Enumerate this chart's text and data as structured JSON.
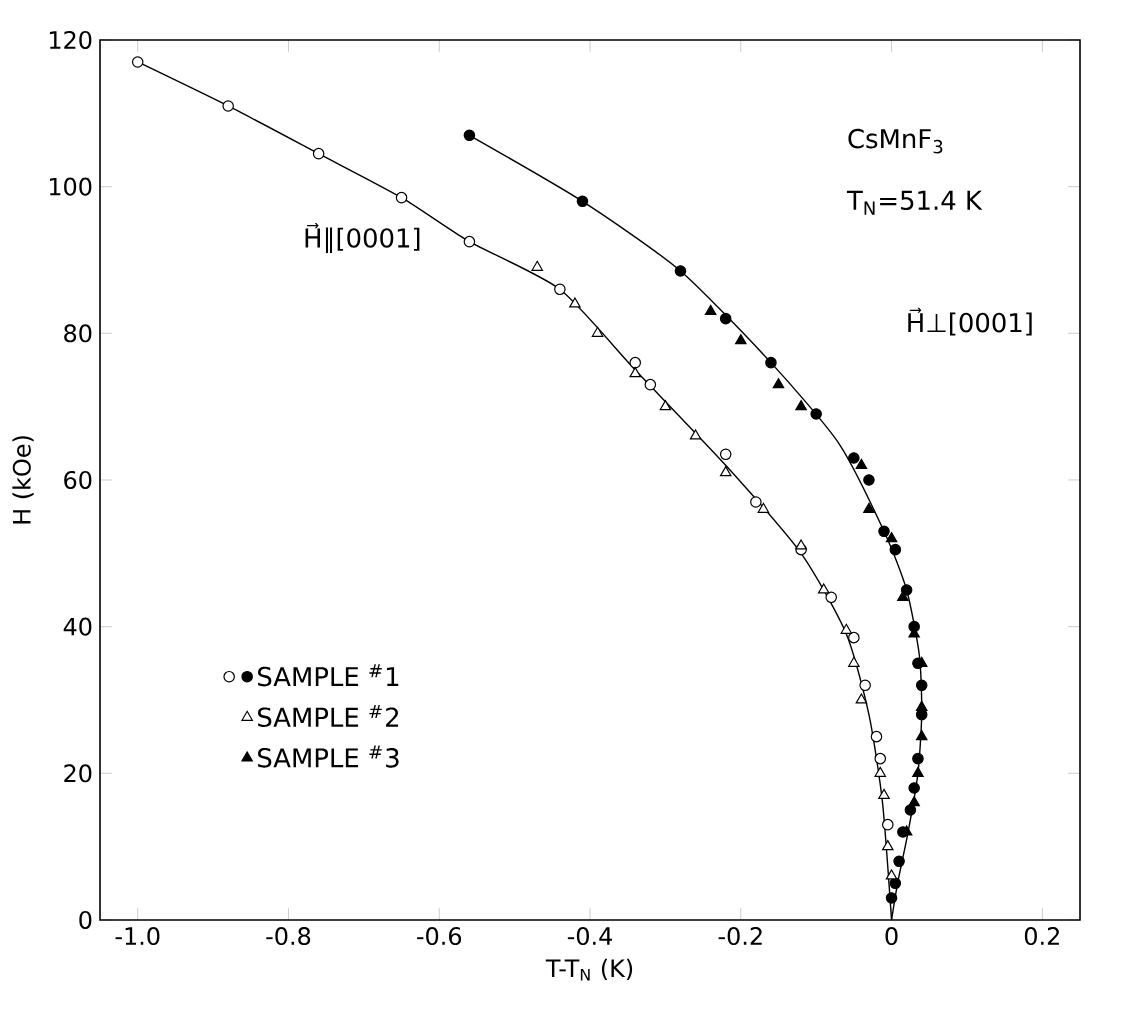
{
  "chart_data": {
    "type": "scatter",
    "xlabel": "T-T$_{N}$ (K)",
    "ylabel": "H (kOe)",
    "xlim": [
      -1.05,
      0.25
    ],
    "ylim": [
      0,
      120
    ],
    "xticks": [
      {
        "value": -1.0,
        "label": "-1.0"
      },
      -0.8,
      -0.6,
      -0.4,
      -0.2,
      0,
      0.2
    ],
    "yticks": [
      0,
      20,
      40,
      60,
      80,
      100,
      120
    ],
    "grid": false,
    "legend": "left",
    "annotations": [
      "CsMnF$_{3}$",
      "T$_{N}$=51.4 K",
      "H⃗∥[0001]",
      "H⃗⊥[0001]"
    ],
    "series": [
      {
        "marker": "circle",
        "color": "#ffffff",
        "x": [
          -1.0,
          -0.88,
          -0.76,
          -0.65,
          -0.56,
          -0.44,
          -0.34,
          -0.32,
          -0.22,
          -0.18,
          -0.12,
          -0.08,
          -0.05,
          -0.035,
          -0.02,
          -0.015,
          -0.005
        ],
        "values": [
          117,
          111,
          104.5,
          98.5,
          92.5,
          86,
          76,
          73,
          63.5,
          57,
          50.5,
          44,
          38.5,
          32,
          25,
          22,
          13
        ]
      },
      {
        "name": "SAMPLE $^{#}$1",
        "marker": "circle",
        "color": "#000000",
        "x": [
          -0.56,
          -0.41,
          -0.28,
          -0.22,
          -0.16,
          -0.1,
          -0.05,
          -0.03,
          -0.01,
          0.005,
          0.02,
          0.03,
          0.035,
          0.04,
          0.04,
          0.035,
          0.03,
          0.025,
          0.015,
          0.01,
          0.005,
          0.0
        ],
        "values": [
          107,
          98,
          88.5,
          82,
          76,
          69,
          63,
          60,
          53,
          50.5,
          45,
          40,
          35,
          32,
          28,
          22,
          18,
          15,
          12,
          8,
          5,
          3
        ]
      },
      {
        "name": "SAMPLE $^{#}$2",
        "marker": "triangle",
        "color": "#ffffff",
        "x": [
          -0.47,
          -0.42,
          -0.39,
          -0.34,
          -0.3,
          -0.26,
          -0.22,
          -0.17,
          -0.12,
          -0.09,
          -0.06,
          -0.05,
          -0.04,
          -0.015,
          -0.01,
          -0.005,
          0.0
        ],
        "values": [
          89,
          84,
          80,
          74.5,
          70,
          66,
          61,
          56,
          51,
          45,
          39.5,
          35,
          30,
          20,
          17,
          10,
          6
        ]
      },
      {
        "name": "SAMPLE $^{#}$3",
        "marker": "triangle",
        "color": "#000000",
        "x": [
          -0.24,
          -0.2,
          -0.15,
          -0.12,
          -0.04,
          -0.03,
          0.0,
          0.015,
          0.03,
          0.04,
          0.04,
          0.04,
          0.035,
          0.03,
          0.02
        ],
        "values": [
          83,
          79,
          73,
          70,
          62,
          56,
          52,
          44,
          39,
          35,
          29,
          25,
          20,
          16,
          12
        ]
      },
      {
        "type": "line",
        "marker": "none",
        "color": "#000000",
        "x": [
          -1.0,
          -0.88,
          -0.76,
          -0.65,
          -0.56,
          -0.44,
          -0.34,
          -0.22,
          -0.12,
          -0.06,
          -0.03,
          -0.012,
          0.0
        ],
        "values": [
          117,
          111,
          104.5,
          98.5,
          92.5,
          86,
          75,
          62,
          50,
          39,
          28,
          16,
          0
        ]
      },
      {
        "type": "line",
        "marker": "none",
        "color": "#000000",
        "x": [
          -0.56,
          -0.41,
          -0.28,
          -0.16,
          -0.07,
          -0.01,
          0.02,
          0.037,
          0.04,
          0.035,
          0.022,
          0.008,
          0.0
        ],
        "values": [
          107,
          98,
          88.5,
          76,
          65,
          53,
          45,
          36,
          28,
          20,
          12,
          5,
          0
        ]
      }
    ]
  }
}
